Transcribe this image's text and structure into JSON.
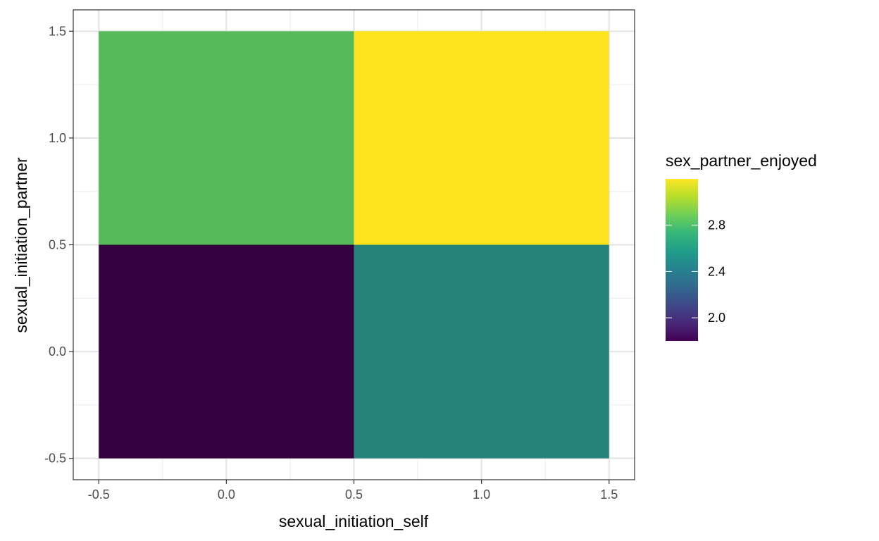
{
  "chart_data": {
    "type": "heatmap",
    "x_title": "sexual_initiation_self",
    "y_title": "sexual_initiation_partner",
    "x_ticks": [
      {
        "value": -0.5,
        "label": "-0.5"
      },
      {
        "value": 0.0,
        "label": "0.0"
      },
      {
        "value": 0.5,
        "label": "0.5"
      },
      {
        "value": 1.0,
        "label": "1.0"
      },
      {
        "value": 1.5,
        "label": "1.5"
      }
    ],
    "y_ticks": [
      {
        "value": -0.5,
        "label": "-0.5"
      },
      {
        "value": 0.0,
        "label": "0.0"
      },
      {
        "value": 0.5,
        "label": "0.5"
      },
      {
        "value": 1.0,
        "label": "1.0"
      },
      {
        "value": 1.5,
        "label": "1.5"
      }
    ],
    "xlim": [
      -0.6,
      1.6
    ],
    "ylim": [
      -0.6,
      1.6
    ],
    "grid": true,
    "cells": [
      {
        "x": 0,
        "y": 0,
        "value": 1.8,
        "color": "#35003f"
      },
      {
        "x": 1,
        "y": 0,
        "value": 2.5,
        "color": "#26837a"
      },
      {
        "x": 0,
        "y": 1,
        "value": 2.9,
        "color": "#56ba5a"
      },
      {
        "x": 1,
        "y": 1,
        "value": 3.2,
        "color": "#fde41f"
      }
    ],
    "legend": {
      "title": "sex_partner_enjoyed",
      "placement": "right",
      "range": [
        1.8,
        3.2
      ],
      "breaks": [
        {
          "value": 2.0,
          "label": "2.0"
        },
        {
          "value": 2.4,
          "label": "2.4"
        },
        {
          "value": 2.8,
          "label": "2.8"
        }
      ],
      "palette": [
        "#440154",
        "#482878",
        "#3e4989",
        "#31688e",
        "#26828e",
        "#1f9e89",
        "#35b779",
        "#6ece58",
        "#b5de2b",
        "#fde725"
      ]
    }
  }
}
